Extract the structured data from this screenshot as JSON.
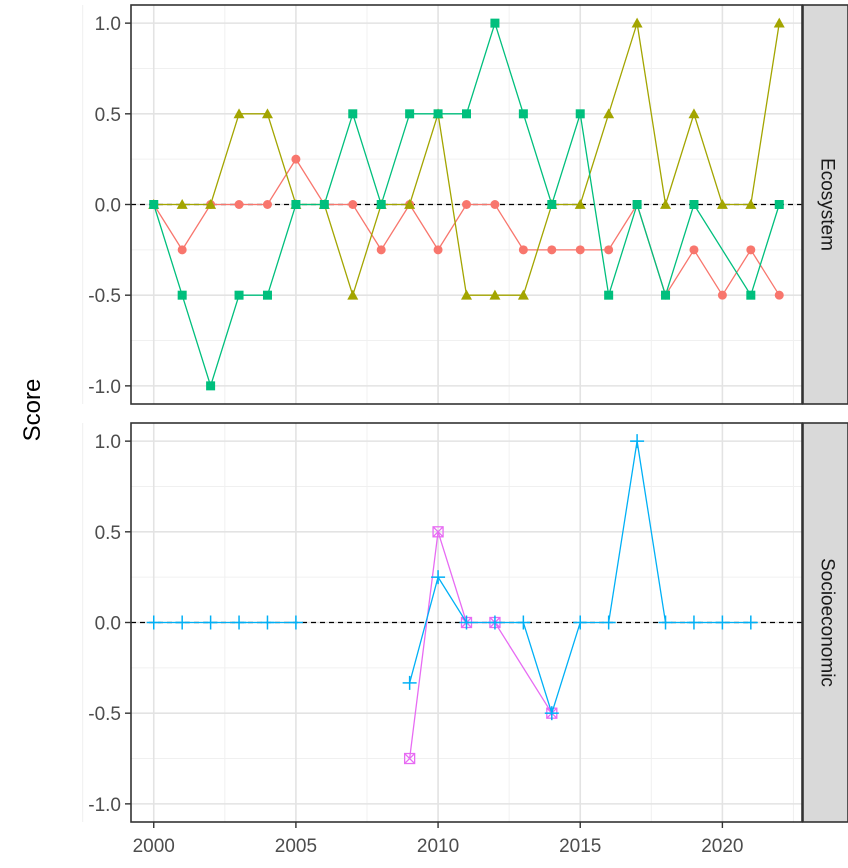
{
  "chart_data": {
    "type": "line",
    "ylabel": "Score",
    "xlabel": "",
    "xlim": [
      1999.2,
      2022.8
    ],
    "ylim": [
      -1.1,
      1.1
    ],
    "x_ticks": [
      2000,
      2005,
      2010,
      2015,
      2020
    ],
    "y_ticks": [
      -1.0,
      -0.5,
      0.0,
      0.5,
      1.0
    ],
    "x_tick_labels": [
      "2000",
      "2005",
      "2010",
      "2015",
      "2020"
    ],
    "y_tick_labels": [
      "-1.0",
      "-0.5",
      "0.0",
      "0.5",
      "1.0"
    ],
    "grid": true,
    "reference_line": 0,
    "panels": [
      {
        "strip_label": "Ecosystem",
        "series": [
          {
            "color": "#F8766D",
            "shape": "circle",
            "x": [
              2000,
              2001,
              2002,
              2003,
              2004,
              2005,
              2006,
              2007,
              2008,
              2009,
              2010,
              2011,
              2012,
              2013,
              2014,
              2015,
              2016,
              2017,
              2018,
              2019,
              2020,
              2021,
              2022
            ],
            "y": [
              0,
              -0.25,
              0,
              0,
              0,
              0.25,
              0,
              0,
              -0.25,
              0,
              -0.25,
              0,
              0,
              -0.25,
              -0.25,
              -0.25,
              -0.25,
              0,
              -0.5,
              -0.25,
              -0.5,
              -0.25,
              -0.5
            ]
          },
          {
            "color": "#A3A500",
            "shape": "triangle",
            "x": [
              2000,
              2001,
              2002,
              2003,
              2004,
              2005,
              2006,
              2007,
              2008,
              2009,
              2010,
              2011,
              2012,
              2013,
              2014,
              2015,
              2016,
              2017,
              2018,
              2019,
              2020,
              2021,
              2022
            ],
            "y": [
              0,
              0,
              0,
              0.5,
              0.5,
              0,
              0,
              -0.5,
              0,
              0,
              0.5,
              -0.5,
              -0.5,
              -0.5,
              0,
              0,
              0.5,
              1.0,
              0,
              0.5,
              0,
              0,
              1.0
            ]
          },
          {
            "color": "#00BF7D",
            "shape": "square",
            "x": [
              2000,
              2001,
              2002,
              2003,
              2004,
              2005,
              2006,
              2007,
              2008,
              2009,
              2010,
              2011,
              2012,
              2013,
              2014,
              2015,
              2016,
              2017,
              2018,
              2019,
              2021,
              2022
            ],
            "y": [
              0,
              -0.5,
              -1.0,
              -0.5,
              -0.5,
              0,
              0,
              0.5,
              0,
              0.5,
              0.5,
              0.5,
              1.0,
              0.5,
              0,
              0.5,
              -0.5,
              0,
              -0.5,
              0,
              -0.5,
              0
            ]
          }
        ]
      },
      {
        "strip_label": "Socioeconomic",
        "series": [
          {
            "color": "#E76BF3",
            "shape": "square-cross",
            "x": [
              2009,
              2010,
              2011,
              2012,
              2014
            ],
            "y": [
              -0.75,
              0.5,
              0,
              0,
              -0.5
            ]
          },
          {
            "color": "#00B0F6",
            "shape": "plus",
            "segments": [
              {
                "x": [
                  2000,
                  2001,
                  2002,
                  2003,
                  2004,
                  2005
                ],
                "y": [
                  0,
                  0,
                  0,
                  0,
                  0,
                  0
                ]
              },
              {
                "x": [
                  2009,
                  2010,
                  2011,
                  2012,
                  2013,
                  2014,
                  2015,
                  2016,
                  2017,
                  2018,
                  2019,
                  2020,
                  2021
                ],
                "y": [
                  -0.333,
                  0.25,
                  0,
                  0,
                  0,
                  -0.5,
                  0,
                  0,
                  1.0,
                  0,
                  0,
                  0,
                  0
                ]
              }
            ]
          }
        ]
      }
    ]
  }
}
